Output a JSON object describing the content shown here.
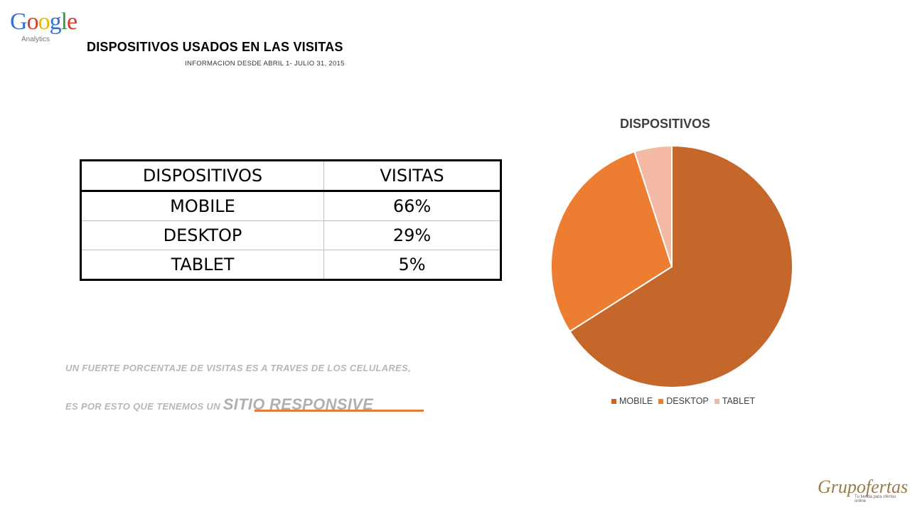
{
  "logo": {
    "word": [
      "G",
      "o",
      "o",
      "g",
      "l",
      "e"
    ],
    "colors": [
      "#3b6fd4",
      "#d93b2b",
      "#f0b400",
      "#3b6fd4",
      "#2f9c46",
      "#d93b2b"
    ],
    "sub": "Analytics"
  },
  "header": {
    "title": "DISPOSITIVOS USADOS EN LAS VISITAS",
    "subtitle": "INFORMACION DESDE ABRIL 1- JULIO 31, 2015"
  },
  "table": {
    "headers": [
      "DISPOSITIVOS",
      "VISITAS"
    ],
    "rows": [
      [
        "MOBILE",
        "66%"
      ],
      [
        "DESKTOP",
        "29%"
      ],
      [
        "TABLET",
        "5%"
      ]
    ]
  },
  "notes": {
    "line1": "UN FUERTE PORCENTAJE DE VISITAS ES A TRAVES DE LOS CELULARES,",
    "line2_prefix": "ES POR ESTO QUE TENEMOS UN ",
    "line2_emphasis": "SITIO RESPONSIVE"
  },
  "chart_data": {
    "type": "pie",
    "title": "DISPOSITIVOS",
    "categories": [
      "MOBILE",
      "DESKTOP",
      "TABLET"
    ],
    "values": [
      66,
      29,
      5
    ],
    "colors": [
      "#c5672a",
      "#ed7d31",
      "#f4b9a5"
    ],
    "legend_position": "bottom"
  },
  "brand": {
    "name": "Grupofertas",
    "tagline": "Tu tienda para ofertas online"
  }
}
